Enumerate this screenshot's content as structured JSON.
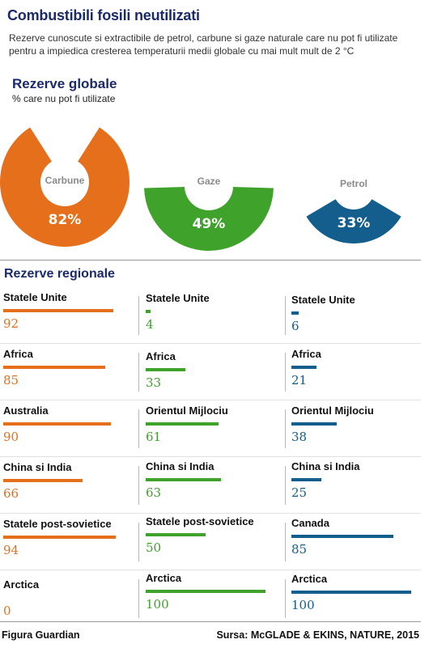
{
  "title": "Combustibili fosili neutilizati",
  "subtitle": "Rezerve cunoscute si extractibile de petrol, carbune si gaze naturale care nu pot fi utilizate pentru a impiedica cresterea temperaturii medii globale cu mai mult mult de 2 °C",
  "colors": {
    "carbune": "#e56f1a",
    "gaze": "#3fa32b",
    "petrol": "#135e8c",
    "heading": "#1a2a6b"
  },
  "chart_data": [
    {
      "type": "pie",
      "title": "Rezerve globale",
      "subtitle": "%  care nu pot fi utilizate",
      "slices": [
        {
          "label": "Carbune",
          "value": 82,
          "display": "82%"
        },
        {
          "label": "Gaze",
          "value": 49,
          "display": "49%"
        },
        {
          "label": "Petrol",
          "value": 33,
          "display": "33%"
        }
      ]
    },
    {
      "type": "bar",
      "title": "Rezerve regionale",
      "columns": [
        {
          "fuel": "carbune",
          "items": [
            {
              "label": "Statele Unite",
              "value": 92
            },
            {
              "label": "Africa",
              "value": 85
            },
            {
              "label": "Australia",
              "value": 90
            },
            {
              "label": "China si India",
              "value": 66
            },
            {
              "label": "Statele post-sovietice",
              "value": 94
            },
            {
              "label": "Arctica",
              "value": 0
            }
          ]
        },
        {
          "fuel": "gaze",
          "items": [
            {
              "label": "Statele Unite",
              "value": 4
            },
            {
              "label": "Africa",
              "value": 33
            },
            {
              "label": "Orientul Mijlociu",
              "value": 61
            },
            {
              "label": "China si India",
              "value": 63
            },
            {
              "label": "Statele post-sovietice",
              "value": 50
            },
            {
              "label": "Arctica",
              "value": 100
            }
          ]
        },
        {
          "fuel": "petrol",
          "items": [
            {
              "label": "Statele Unite",
              "value": 6
            },
            {
              "label": "Africa",
              "value": 21
            },
            {
              "label": "Orientul Mijlociu",
              "value": 38
            },
            {
              "label": "China si India",
              "value": 25
            },
            {
              "label": "Canada",
              "value": 85
            },
            {
              "label": "Arctica",
              "value": 100
            }
          ]
        }
      ]
    }
  ],
  "footer": {
    "credit": "Figura Guardian",
    "source": "Sursa: McGLADE & EKINS, NATURE, 2015"
  }
}
